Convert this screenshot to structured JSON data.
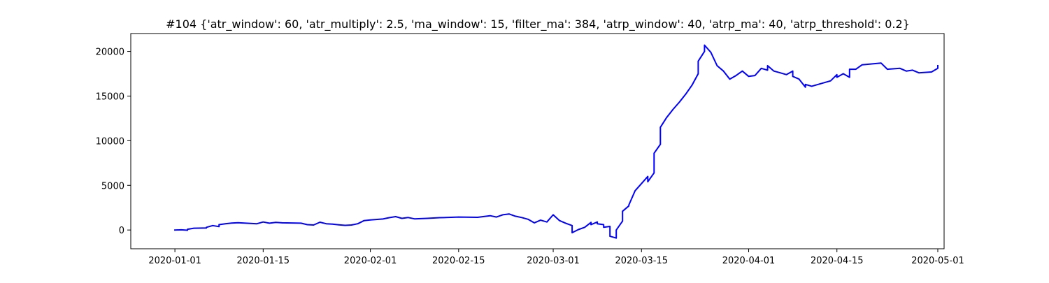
{
  "chart_data": {
    "type": "line",
    "title": "#104 {'atr_window': 60, 'atr_multiply': 2.5, 'ma_window': 15, 'filter_ma': 384, 'atrp_window': 40, 'atrp_ma': 40, 'atrp_threshold': 0.2}",
    "xlabel": "",
    "ylabel": "",
    "x_type": "date",
    "xlim": [
      "2019-12-25",
      "2020-05-02"
    ],
    "ylim": [
      -2100,
      22000
    ],
    "x_ticks": [
      "2020-01-01",
      "2020-01-15",
      "2020-02-01",
      "2020-02-15",
      "2020-03-01",
      "2020-03-15",
      "2020-04-01",
      "2020-04-15",
      "2020-05-01"
    ],
    "y_ticks": [
      0,
      5000,
      10000,
      15000,
      20000
    ],
    "grid": false,
    "legend": "none",
    "series": [
      {
        "color": "#0000ff",
        "points": [
          [
            "2020-01-01",
            0
          ],
          [
            "2020-01-02",
            20
          ],
          [
            "2020-01-03",
            -30
          ],
          [
            "2020-01-03",
            80
          ],
          [
            "2020-01-04",
            200
          ],
          [
            "2020-01-06",
            230
          ],
          [
            "2020-01-06",
            300
          ],
          [
            "2020-01-07",
            500
          ],
          [
            "2020-01-08",
            380
          ],
          [
            "2020-01-08",
            600
          ],
          [
            "2020-01-09",
            700
          ],
          [
            "2020-01-10",
            780
          ],
          [
            "2020-01-11",
            810
          ],
          [
            "2020-01-14",
            700
          ],
          [
            "2020-01-15",
            900
          ],
          [
            "2020-01-16",
            760
          ],
          [
            "2020-01-17",
            860
          ],
          [
            "2020-01-18",
            800
          ],
          [
            "2020-01-21",
            760
          ],
          [
            "2020-01-22",
            600
          ],
          [
            "2020-01-23",
            560
          ],
          [
            "2020-01-24",
            870
          ],
          [
            "2020-01-25",
            700
          ],
          [
            "2020-01-26",
            660
          ],
          [
            "2020-01-27",
            580
          ],
          [
            "2020-01-28",
            520
          ],
          [
            "2020-01-29",
            560
          ],
          [
            "2020-01-30",
            700
          ],
          [
            "2020-01-31",
            1050
          ],
          [
            "2020-02-01",
            1120
          ],
          [
            "2020-02-03",
            1230
          ],
          [
            "2020-02-04",
            1380
          ],
          [
            "2020-02-05",
            1500
          ],
          [
            "2020-02-06",
            1300
          ],
          [
            "2020-02-07",
            1400
          ],
          [
            "2020-02-08",
            1250
          ],
          [
            "2020-02-10",
            1300
          ],
          [
            "2020-02-12",
            1380
          ],
          [
            "2020-02-13",
            1400
          ],
          [
            "2020-02-15",
            1450
          ],
          [
            "2020-02-18",
            1420
          ],
          [
            "2020-02-20",
            1600
          ],
          [
            "2020-02-21",
            1450
          ],
          [
            "2020-02-22",
            1700
          ],
          [
            "2020-02-23",
            1800
          ],
          [
            "2020-02-24",
            1550
          ],
          [
            "2020-02-25",
            1400
          ],
          [
            "2020-02-26",
            1200
          ],
          [
            "2020-02-27",
            800
          ],
          [
            "2020-02-28",
            1100
          ],
          [
            "2020-02-29",
            900
          ],
          [
            "2020-03-01",
            1700
          ],
          [
            "2020-03-02",
            1050
          ],
          [
            "2020-03-03",
            750
          ],
          [
            "2020-03-04",
            500
          ],
          [
            "2020-03-04",
            -300
          ],
          [
            "2020-03-05",
            50
          ],
          [
            "2020-03-06",
            300
          ],
          [
            "2020-03-07",
            850
          ],
          [
            "2020-03-07",
            600
          ],
          [
            "2020-03-08",
            900
          ],
          [
            "2020-03-08",
            700
          ],
          [
            "2020-03-09",
            600
          ],
          [
            "2020-03-09",
            300
          ],
          [
            "2020-03-10",
            400
          ],
          [
            "2020-03-10",
            100
          ],
          [
            "2020-03-10",
            -700
          ],
          [
            "2020-03-11",
            -900
          ],
          [
            "2020-03-11",
            0
          ],
          [
            "2020-03-12",
            1000
          ],
          [
            "2020-03-12",
            2100
          ],
          [
            "2020-03-13",
            2700
          ],
          [
            "2020-03-13",
            2800
          ],
          [
            "2020-03-14",
            4400
          ],
          [
            "2020-03-15",
            5200
          ],
          [
            "2020-03-16",
            6000
          ],
          [
            "2020-03-16",
            5400
          ],
          [
            "2020-03-17",
            6400
          ],
          [
            "2020-03-17",
            8600
          ],
          [
            "2020-03-18",
            9600
          ],
          [
            "2020-03-18",
            11500
          ],
          [
            "2020-03-19",
            12600
          ],
          [
            "2020-03-20",
            13500
          ],
          [
            "2020-03-21",
            14300
          ],
          [
            "2020-03-22",
            15200
          ],
          [
            "2020-03-23",
            16200
          ],
          [
            "2020-03-24",
            17500
          ],
          [
            "2020-03-24",
            18900
          ],
          [
            "2020-03-25",
            20000
          ],
          [
            "2020-03-25",
            20700
          ],
          [
            "2020-03-26",
            19900
          ],
          [
            "2020-03-27",
            18400
          ],
          [
            "2020-03-28",
            17800
          ],
          [
            "2020-03-29",
            16900
          ],
          [
            "2020-03-30",
            17300
          ],
          [
            "2020-03-31",
            17800
          ],
          [
            "2020-04-01",
            17200
          ],
          [
            "2020-04-02",
            17300
          ],
          [
            "2020-04-03",
            18100
          ],
          [
            "2020-04-04",
            17900
          ],
          [
            "2020-04-04",
            18400
          ],
          [
            "2020-04-05",
            17800
          ],
          [
            "2020-04-06",
            17600
          ],
          [
            "2020-04-07",
            17400
          ],
          [
            "2020-04-08",
            17800
          ],
          [
            "2020-04-08",
            17200
          ],
          [
            "2020-04-09",
            16900
          ],
          [
            "2020-04-10",
            16000
          ],
          [
            "2020-04-10",
            16300
          ],
          [
            "2020-04-11",
            16100
          ],
          [
            "2020-04-14",
            16700
          ],
          [
            "2020-04-15",
            17400
          ],
          [
            "2020-04-15",
            17100
          ],
          [
            "2020-04-16",
            17500
          ],
          [
            "2020-04-17",
            17100
          ],
          [
            "2020-04-17",
            18000
          ],
          [
            "2020-04-18",
            18000
          ],
          [
            "2020-04-19",
            18500
          ],
          [
            "2020-04-22",
            18700
          ],
          [
            "2020-04-23",
            18000
          ],
          [
            "2020-04-25",
            18100
          ],
          [
            "2020-04-26",
            17800
          ],
          [
            "2020-04-27",
            17900
          ],
          [
            "2020-04-28",
            17600
          ],
          [
            "2020-04-30",
            17700
          ],
          [
            "2020-05-01",
            18100
          ],
          [
            "2020-05-01",
            18400
          ]
        ]
      }
    ]
  }
}
